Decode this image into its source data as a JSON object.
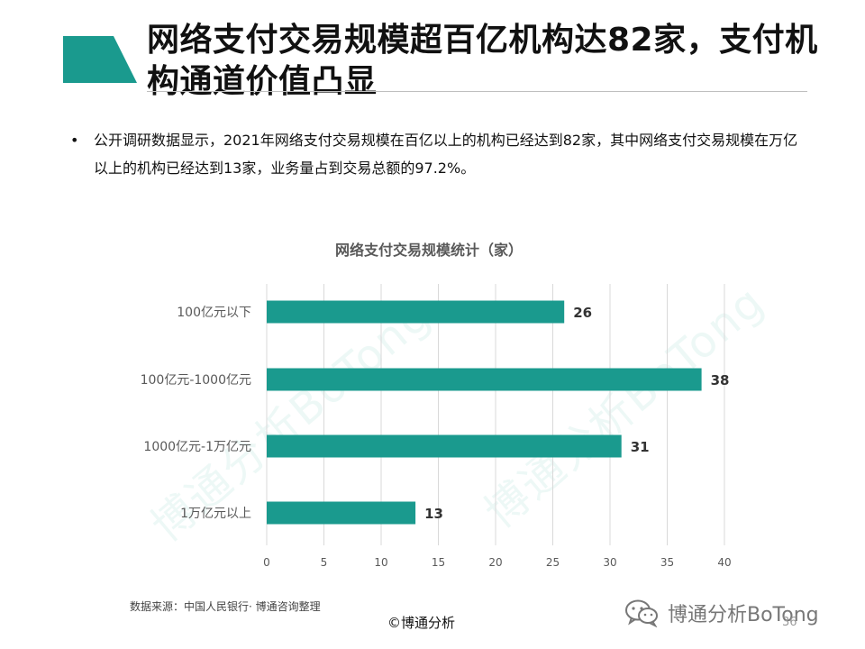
{
  "slide": {
    "title": "网络支付交易规模超百亿机构达82家，支付机构通道价值凸显",
    "bullet": "公开调研数据显示，2021年网络支付交易规模在百亿以上的机构已经达到82家，其中网络支付交易规模在万亿以上的机构已经达到13家，业务量占到交易总额的97.2%。",
    "bullet_marker": "•",
    "source": "数据来源：中国人民银行· 博通咨询整理",
    "copyright": "©博通分析",
    "brand_text": "博通分析BoTong",
    "page_number": "36",
    "watermark_text": "博通分析BoTong",
    "colors": {
      "accent": "#1a9a8e",
      "bar": "#1a9a8e",
      "grid": "#d9d9d9",
      "text": "#111111"
    }
  },
  "chart_data": {
    "type": "bar",
    "orientation": "horizontal",
    "title": "网络支付交易规模统计（家）",
    "categories": [
      "100亿元以下",
      "100亿元-1000亿元",
      "1000亿元-1万亿元",
      "1万亿元以上"
    ],
    "values": [
      26,
      38,
      31,
      13
    ],
    "data_labels": [
      "26",
      "38",
      "31",
      "13"
    ],
    "xlim": [
      0,
      40
    ],
    "x_ticks": [
      0,
      5,
      10,
      15,
      20,
      25,
      30,
      35,
      40
    ],
    "grid": "vertical",
    "legend": "none",
    "bar_color": "#1a9a8e"
  }
}
